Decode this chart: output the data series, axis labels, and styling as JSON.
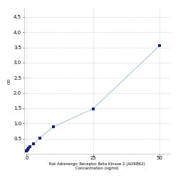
{
  "x_data": [
    0,
    0.156,
    0.313,
    0.625,
    1.25,
    2.5,
    5,
    10,
    25,
    50
  ],
  "y_data": [
    0.082,
    0.112,
    0.138,
    0.175,
    0.228,
    0.32,
    0.52,
    0.88,
    1.48,
    3.55
  ],
  "line_color": "#aac8e0",
  "marker_color": "#1a237e",
  "marker_size": 10,
  "marker_style": "s",
  "xlabel_line1": "Rat Adrenergic Receptor Beta Kinase 2 (ADRBK2)",
  "xlabel_line2": "Concentration (ng/ml)",
  "ylabel": "OD",
  "xlim": [
    -1,
    54
  ],
  "ylim": [
    0,
    4.8
  ],
  "xticks": [
    0,
    25,
    50
  ],
  "yticks": [
    0.5,
    1.0,
    1.5,
    2.0,
    2.5,
    3.0,
    3.5,
    4.0,
    4.5
  ],
  "grid_color": "#d0d0d0",
  "grid_style": "--",
  "background_color": "#ffffff",
  "tick_fontsize": 5,
  "label_fontsize": 4.0
}
